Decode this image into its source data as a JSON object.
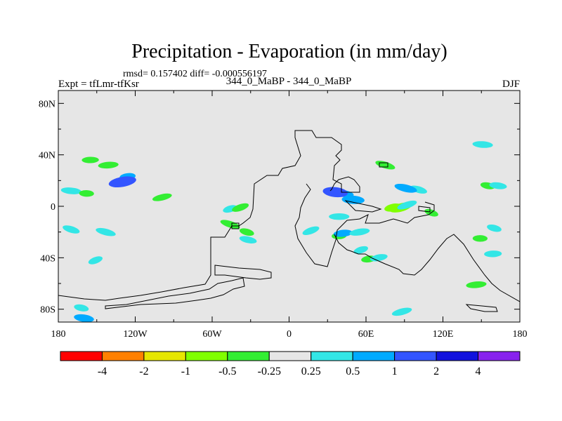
{
  "chart_data": {
    "type": "heatmap",
    "title": "Precipitation - Evaporation (in mm/day)",
    "stats_line": "rmsd= 0.157402 diff= -0.000556197",
    "left_label": "Expt = tfLmr-tfKsr",
    "center_label": "344_0_MaBP - 344_0_MaBP",
    "right_label": "DJF",
    "x_ticks": [
      {
        "value": -180,
        "label": "180"
      },
      {
        "value": -120,
        "label": "120W"
      },
      {
        "value": -60,
        "label": "60W"
      },
      {
        "value": 0,
        "label": "0"
      },
      {
        "value": 60,
        "label": "60E"
      },
      {
        "value": 120,
        "label": "120E"
      },
      {
        "value": 180,
        "label": "180"
      }
    ],
    "y_ticks": [
      {
        "value": 80,
        "label": "80N"
      },
      {
        "value": 40,
        "label": "40N"
      },
      {
        "value": 0,
        "label": "0"
      },
      {
        "value": -40,
        "label": "40S"
      },
      {
        "value": -80,
        "label": "80S"
      }
    ],
    "xlim": [
      -180,
      180
    ],
    "ylim": [
      -90,
      90
    ],
    "background_level": {
      "range": "-0.25 to 0.25",
      "color": "#e6e6e6"
    },
    "colorbar": {
      "colors": [
        "#ff0000",
        "#ff8000",
        "#e6e600",
        "#80ff00",
        "#33ee33",
        "#e6e6e6",
        "#33e6e6",
        "#00aaff",
        "#3355ff",
        "#1111dd",
        "#8822ee"
      ],
      "labels": [
        "-4",
        "-2",
        "-1",
        "-0.5",
        "-0.25",
        "0.25",
        "0.5",
        "1",
        "2",
        "4"
      ]
    },
    "anomaly_regions": [
      {
        "lon": -151,
        "lat": -42,
        "value": 0.4
      },
      {
        "lon": -170,
        "lat": -18,
        "value": 0.4
      },
      {
        "lon": -143,
        "lat": -20,
        "value": 0.4
      },
      {
        "lon": -162,
        "lat": -79,
        "value": 0.4
      },
      {
        "lon": -160,
        "lat": -87,
        "value": 0.6
      },
      {
        "lon": -170,
        "lat": 12,
        "value": 0.4
      },
      {
        "lon": -158,
        "lat": 10,
        "value": -0.4
      },
      {
        "lon": -155,
        "lat": 36,
        "value": -0.35
      },
      {
        "lon": -141,
        "lat": 32,
        "value": -0.4
      },
      {
        "lon": -126,
        "lat": 23,
        "value": 0.5
      },
      {
        "lon": -130,
        "lat": 19,
        "value": 1.2
      },
      {
        "lon": -99,
        "lat": 7,
        "value": -0.35
      },
      {
        "lon": -46,
        "lat": -2,
        "value": 0.4
      },
      {
        "lon": -38,
        "lat": -1,
        "value": -0.4
      },
      {
        "lon": -46,
        "lat": -14,
        "value": -0.4
      },
      {
        "lon": -33,
        "lat": -20,
        "value": -0.4
      },
      {
        "lon": -32,
        "lat": -26,
        "value": 0.4
      },
      {
        "lon": 42,
        "lat": 10,
        "value": 0.5
      },
      {
        "lon": 36,
        "lat": 11,
        "value": 1.2
      },
      {
        "lon": 50,
        "lat": 5,
        "value": 0.8
      },
      {
        "lon": 39,
        "lat": -8,
        "value": 0.4
      },
      {
        "lon": 39,
        "lat": -23,
        "value": -0.4
      },
      {
        "lon": 42,
        "lat": -21,
        "value": 0.5
      },
      {
        "lon": 55,
        "lat": -20,
        "value": 0.4
      },
      {
        "lon": 81,
        "lat": -1,
        "value": -0.6
      },
      {
        "lon": 87,
        "lat": -1,
        "value": -0.8
      },
      {
        "lon": 92,
        "lat": 1,
        "value": 0.4
      },
      {
        "lon": 111,
        "lat": -5,
        "value": -0.35
      },
      {
        "lon": 101,
        "lat": 13,
        "value": 0.4
      },
      {
        "lon": 91,
        "lat": 14,
        "value": 0.6
      },
      {
        "lon": 155,
        "lat": 16,
        "value": -0.4
      },
      {
        "lon": 163,
        "lat": 16,
        "value": 0.4
      },
      {
        "lon": 151,
        "lat": 48,
        "value": 0.4
      },
      {
        "lon": 149,
        "lat": -25,
        "value": -0.4
      },
      {
        "lon": 159,
        "lat": -37,
        "value": 0.4
      },
      {
        "lon": 146,
        "lat": -61,
        "value": -0.4
      },
      {
        "lon": 62,
        "lat": -41,
        "value": -0.4
      },
      {
        "lon": 70,
        "lat": -40,
        "value": 0.4
      },
      {
        "lon": 88,
        "lat": -82,
        "value": 0.4
      },
      {
        "lon": 56,
        "lat": -34,
        "value": 0.4
      },
      {
        "lon": 17,
        "lat": -19,
        "value": 0.4
      },
      {
        "lon": 75,
        "lat": 32,
        "value": -0.4
      },
      {
        "lon": 160,
        "lat": -17,
        "value": 0.4
      }
    ]
  }
}
